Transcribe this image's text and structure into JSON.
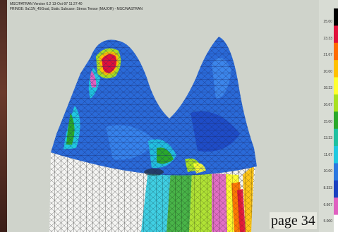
{
  "header": {
    "line1": "MSC/PATRAN Version 6.2 13-Oct-97 11:27:40",
    "line2": "FRINGE: 9a11N_45Grad, Static Subcase: Stress Tensor (MAJOR) - MSC/NASTRAN"
  },
  "legend": {
    "labels": [
      "25.00",
      "23.33",
      "21.67",
      "20.00",
      "18.33",
      "16.67",
      "15.00",
      "13.33",
      "11.67",
      "10.00",
      "8.333",
      "6.667",
      "5.000"
    ],
    "colors": [
      "#000000",
      "#e0103a",
      "#ff6a00",
      "#ffc000",
      "#ffff30",
      "#a8e020",
      "#2aa82a",
      "#1fc0a0",
      "#20c8e0",
      "#2a78e0",
      "#1a40c0",
      "#e060c0",
      "#ffffff"
    ]
  },
  "page": {
    "label": "page 34"
  }
}
